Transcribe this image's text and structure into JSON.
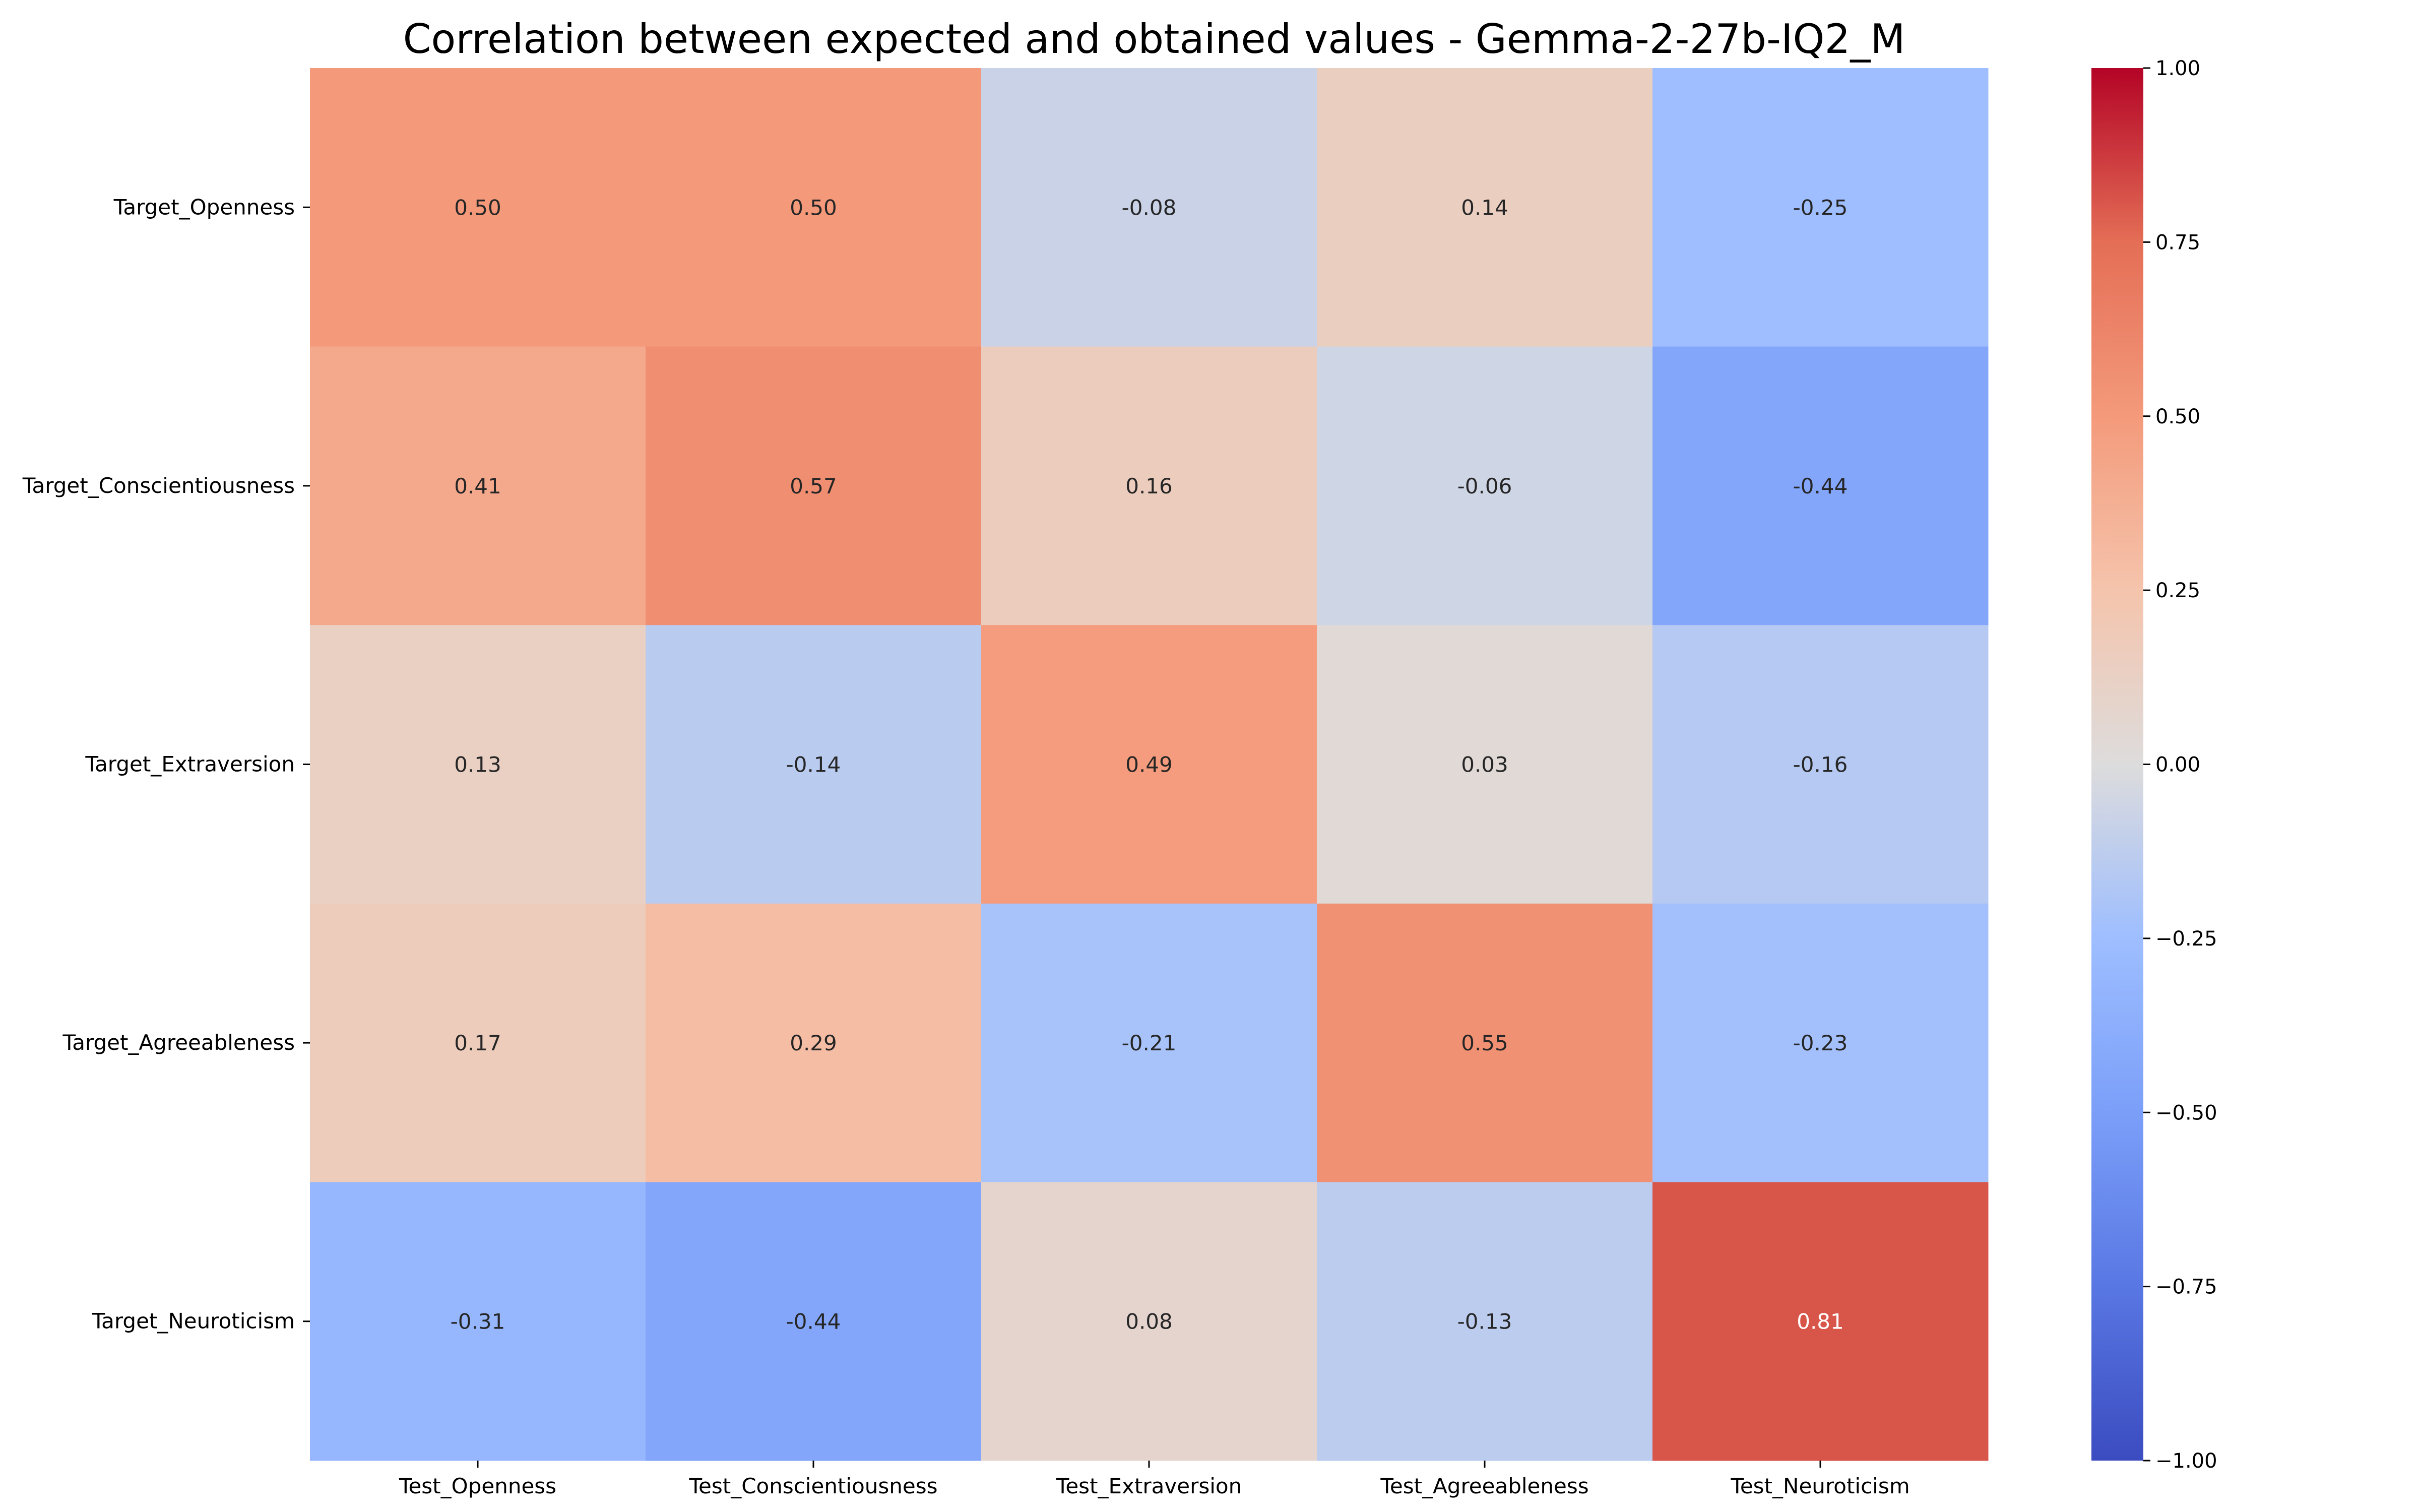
{
  "chart_data": {
    "type": "heatmap",
    "title": "Correlation between expected and obtained values - Gemma-2-27b-IQ2_M",
    "xlabel": "",
    "ylabel": "",
    "x_categories": [
      "Test_Openness",
      "Test_Conscientiousness",
      "Test_Extraversion",
      "Test_Agreeableness",
      "Test_Neuroticism"
    ],
    "y_categories": [
      "Target_Openness",
      "Target_Conscientiousness",
      "Target_Extraversion",
      "Target_Agreeableness",
      "Target_Neuroticism"
    ],
    "values": [
      [
        0.5,
        0.5,
        -0.08,
        0.14,
        -0.25
      ],
      [
        0.41,
        0.57,
        0.16,
        -0.06,
        -0.44
      ],
      [
        0.13,
        -0.14,
        0.49,
        0.03,
        -0.16
      ],
      [
        0.17,
        0.29,
        -0.21,
        0.55,
        -0.23
      ],
      [
        -0.31,
        -0.44,
        0.08,
        -0.13,
        0.81
      ]
    ],
    "value_format": "0.00",
    "colormap": "coolwarm",
    "vmin": -1.0,
    "vmax": 1.0,
    "colorbar_ticks": [
      1.0,
      0.75,
      0.5,
      0.25,
      0.0,
      -0.25,
      -0.5,
      -0.75,
      -1.0
    ],
    "colorbar_tick_labels": [
      "1.00",
      "0.75",
      "0.50",
      "0.25",
      "0.00",
      "−0.25",
      "−0.50",
      "−0.75",
      "−1.00"
    ],
    "grid": false,
    "legend": "colorbar-right"
  }
}
